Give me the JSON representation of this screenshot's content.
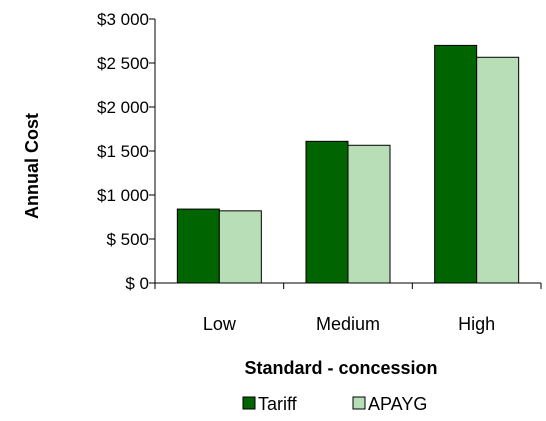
{
  "chart_data": {
    "type": "bar",
    "title": "",
    "xlabel": "Standard - concession",
    "ylabel": "Annual Cost",
    "categories": [
      "Low",
      "Medium",
      "High"
    ],
    "series": [
      {
        "name": "Tariff",
        "values": [
          840,
          1610,
          2700
        ],
        "color": "#006400"
      },
      {
        "name": "APAYG",
        "values": [
          820,
          1565,
          2565
        ],
        "color": "#b8deb8"
      }
    ],
    "ylim": [
      0,
      3000
    ],
    "yticks": [
      0,
      500,
      1000,
      1500,
      2000,
      2500,
      3000
    ],
    "ytick_labels": [
      "$ 0",
      "$ 500",
      "$1 000",
      "$1 500",
      "$2 000",
      "$2 500",
      "$3 000"
    ],
    "grid": false,
    "legend_position": "bottom"
  }
}
